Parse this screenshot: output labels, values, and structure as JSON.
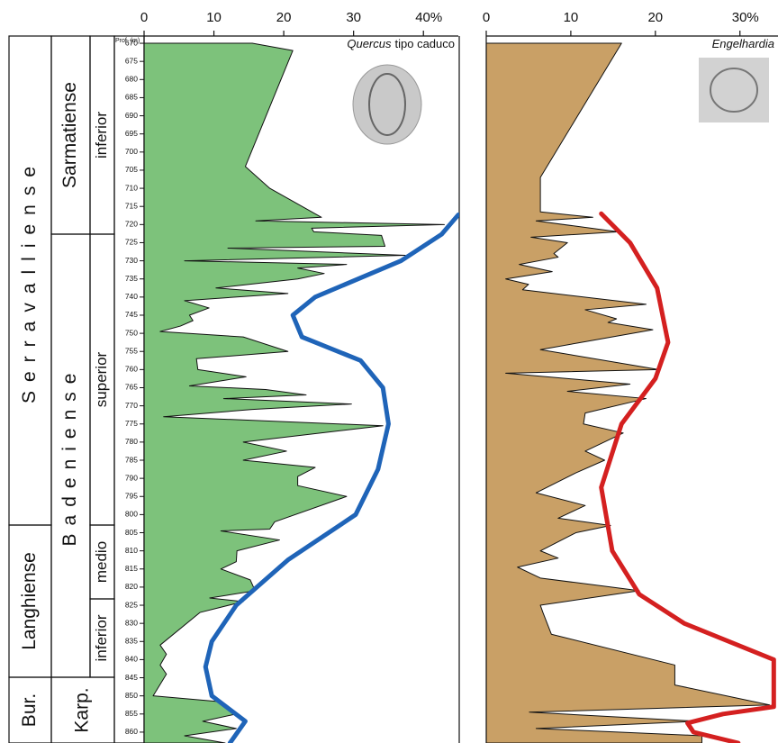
{
  "stratigraphy": {
    "stages": [
      "Serravalliense",
      "Langhiense",
      "Bur."
    ],
    "substages": [
      "Sarmatiense",
      "Badeniense",
      "Karp."
    ],
    "subdivisions": [
      "inferior",
      "superior",
      "medio",
      "inferior"
    ]
  },
  "chart_data": [
    {
      "type": "depth-area",
      "taxon": "Quercus",
      "qualifier": "tipo caduco",
      "ylabel": "Prof. (m)",
      "ylim": [
        668,
        863
      ],
      "yticks": [
        670,
        675,
        680,
        685,
        690,
        695,
        700,
        705,
        710,
        715,
        720,
        725,
        730,
        735,
        740,
        745,
        750,
        755,
        760,
        765,
        770,
        775,
        780,
        785,
        790,
        795,
        800,
        805,
        810,
        815,
        820,
        825,
        830,
        835,
        840,
        845,
        850,
        855,
        860
      ],
      "xlim": [
        0,
        45
      ],
      "xticks": [
        0,
        10,
        20,
        30,
        {
          "value": 40,
          "label": "40%"
        }
      ],
      "area": {
        "color": "#7dc27b",
        "x": [
          670,
          672,
          704,
          710,
          718,
          719,
          720,
          721,
          722,
          723,
          726,
          726.5,
          728.5,
          730,
          731,
          732,
          733.5,
          735,
          737.5,
          739,
          741,
          743,
          745,
          746.5,
          748,
          749.5,
          751,
          755,
          757,
          760,
          762,
          764.5,
          765.5,
          767,
          768,
          769.5,
          771,
          773,
          775.5,
          780,
          782.5,
          785,
          787,
          789.5,
          792,
          795,
          802,
          804,
          804.5,
          807,
          810,
          813,
          815,
          818,
          821,
          823,
          824,
          827,
          836,
          838.5,
          841.5,
          844,
          850,
          851.5,
          855,
          857,
          859,
          861,
          863
        ],
        "values": [
          15.5,
          21.3,
          14.5,
          18,
          25.4,
          16,
          43,
          24,
          24.3,
          34,
          34.5,
          12,
          37.4,
          5.8,
          29,
          22,
          25.8,
          22,
          10.3,
          20.6,
          5.8,
          9.3,
          6.5,
          7,
          5.2,
          2.3,
          14.2,
          20.6,
          7.5,
          7.7,
          14.6,
          6.5,
          17.4,
          23.2,
          11.4,
          29.7,
          15.5,
          2.8,
          34.2,
          14.2,
          20.4,
          14.2,
          24.5,
          22,
          22,
          29,
          18.7,
          18,
          11,
          19.4,
          13.3,
          13.2,
          11,
          15.2,
          15.9,
          9.4,
          14.2,
          8,
          2.3,
          3.2,
          2.3,
          3.2,
          1.3,
          10.3,
          13.2,
          8.4,
          13.2,
          5.8,
          11.6
        ]
      },
      "curve": {
        "color": "#1f64b8",
        "x": [
          717.3,
          722.7,
          730,
          740,
          745,
          751,
          757.5,
          765,
          775,
          787.5,
          800,
          812.5,
          825,
          835,
          842,
          850,
          857,
          863
        ],
        "values": [
          45,
          42.6,
          36.8,
          24.5,
          21.3,
          22.6,
          31,
          34.2,
          35,
          33.5,
          30.3,
          20.6,
          13.2,
          9.7,
          8.8,
          9.7,
          14.5,
          12.3
        ]
      }
    },
    {
      "type": "depth-area",
      "taxon": "Engelhardia",
      "ylim": [
        668,
        863
      ],
      "xlim": [
        0,
        34.5
      ],
      "xticks": [
        0,
        10,
        20,
        {
          "value": 30,
          "label": "30%"
        }
      ],
      "area": {
        "color": "#c9a066",
        "x": [
          670,
          707,
          716.5,
          718,
          719,
          722,
          723.5,
          725,
          728,
          729,
          731,
          733,
          735,
          736.5,
          738,
          742,
          743.5,
          746,
          747,
          749,
          754.5,
          760,
          761,
          764,
          766,
          768,
          772,
          775,
          777.5,
          782.5,
          785,
          788.5,
          794,
          797.5,
          801,
          803,
          805,
          810,
          812,
          814.5,
          817.5,
          821,
          825,
          827,
          833,
          841.5,
          847,
          852.5,
          854.5,
          857,
          859,
          861,
          863
        ],
        "values": [
          16,
          6.4,
          6.4,
          12.6,
          5.9,
          15.6,
          5.3,
          9.6,
          8,
          8.5,
          3.9,
          7.8,
          2.3,
          5,
          4.3,
          18.9,
          11.7,
          15.4,
          14.4,
          19.7,
          6.4,
          20.4,
          2.3,
          17,
          9.6,
          18.9,
          11.7,
          11.5,
          16.2,
          11.7,
          14,
          10.6,
          5.9,
          11.7,
          8.5,
          14.7,
          10.6,
          6.4,
          8.5,
          3.7,
          6.4,
          18.1,
          6.4,
          6.7,
          7.7,
          22.3,
          22.3,
          33.5,
          5.1,
          25,
          5.9,
          25.5,
          25.5
        ]
      },
      "curve": {
        "color": "#d42020",
        "x": [
          717,
          725,
          737.5,
          752.5,
          762.5,
          775,
          792.5,
          810,
          822,
          830,
          840,
          853,
          855,
          857.5,
          860,
          863
        ],
        "values": [
          13.6,
          17,
          20.2,
          21.5,
          20,
          16,
          13.6,
          14.9,
          18.1,
          23.4,
          34,
          34,
          28,
          23.8,
          24.5,
          29.8
        ]
      }
    }
  ]
}
